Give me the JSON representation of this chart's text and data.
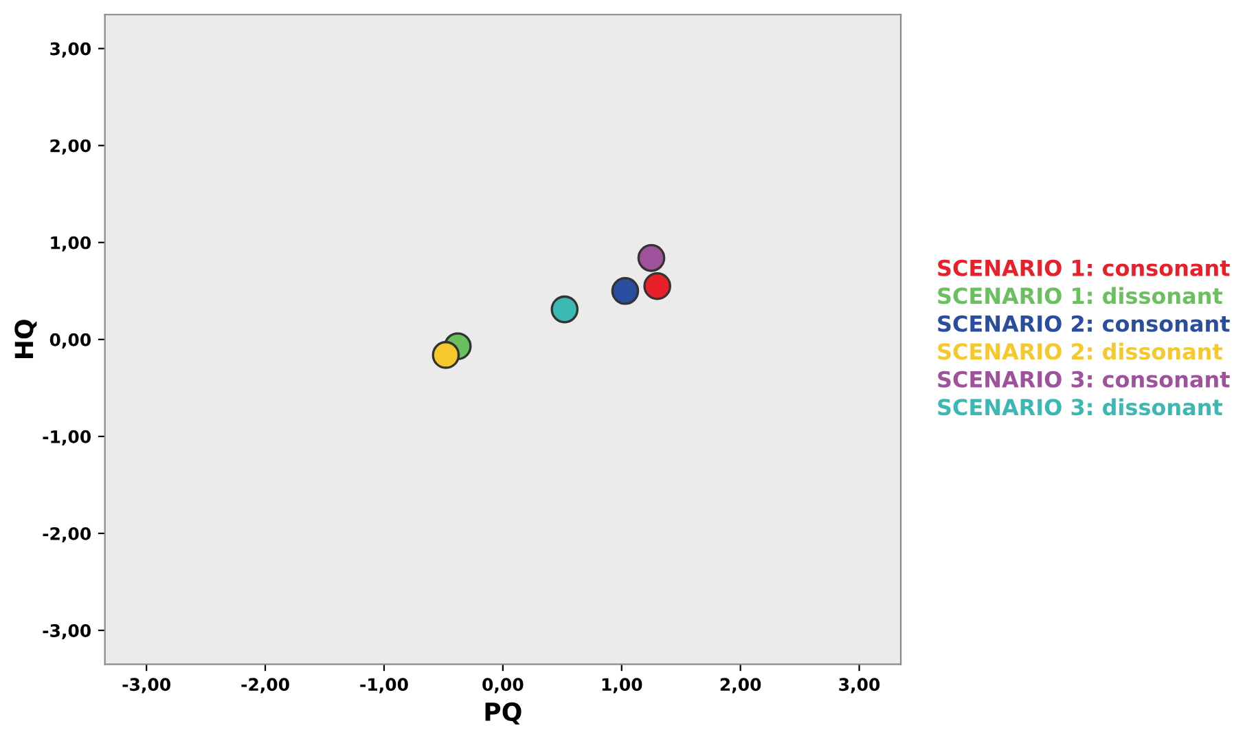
{
  "chart_data": {
    "type": "scatter",
    "xlabel": "PQ",
    "ylabel": "HQ",
    "xlim": [
      -3.35,
      3.35
    ],
    "ylim": [
      -3.35,
      3.35
    ],
    "xticks": [
      {
        "value": -3,
        "label": "-3,00"
      },
      {
        "value": -2,
        "label": "-2,00"
      },
      {
        "value": -1,
        "label": "-1,00"
      },
      {
        "value": 0,
        "label": "0,00"
      },
      {
        "value": 1,
        "label": "1,00"
      },
      {
        "value": 2,
        "label": "2,00"
      },
      {
        "value": 3,
        "label": "3,00"
      }
    ],
    "yticks": [
      {
        "value": -3,
        "label": "-3,00"
      },
      {
        "value": -2,
        "label": "-2,00"
      },
      {
        "value": -1,
        "label": "-1,00"
      },
      {
        "value": 0,
        "label": "0,00"
      },
      {
        "value": 1,
        "label": "1,00"
      },
      {
        "value": 2,
        "label": "2,00"
      },
      {
        "value": 3,
        "label": "3,00"
      }
    ],
    "grid": false,
    "legend": "right",
    "marker": "circle",
    "series": [
      {
        "name": "SCENARIO 1: consonant",
        "color": "#e8202a",
        "x": [
          1.3
        ],
        "values": [
          0.55
        ]
      },
      {
        "name": "SCENARIO 1: dissonant",
        "color": "#6abf5e",
        "x": [
          -0.38
        ],
        "values": [
          -0.07
        ]
      },
      {
        "name": "SCENARIO 2: consonant",
        "color": "#2a4d9f",
        "x": [
          1.03
        ],
        "values": [
          0.5
        ]
      },
      {
        "name": "SCENARIO 2: dissonant",
        "color": "#f5c92e",
        "x": [
          -0.48
        ],
        "values": [
          -0.16
        ]
      },
      {
        "name": "SCENARIO 3: consonant",
        "color": "#a0519b",
        "x": [
          1.25
        ],
        "values": [
          0.84
        ]
      },
      {
        "name": "SCENARIO 3: dissonant",
        "color": "#3bb8b2",
        "x": [
          0.52
        ],
        "values": [
          0.31
        ]
      }
    ]
  }
}
